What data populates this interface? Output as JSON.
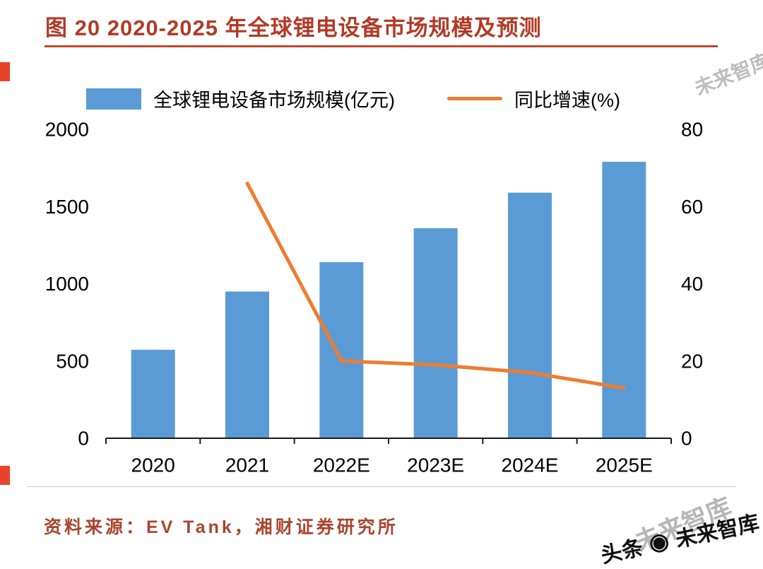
{
  "page": {
    "title": "图 20 2020-2025 年全球锂电设备市场规模及预测",
    "source_label": "资料来源：EV Tank，湘财证券研究所",
    "watermark": {
      "brand": "头条",
      "handle": "未来智库",
      "ghost": "未来智库"
    }
  },
  "chart_data": {
    "type": "bar",
    "subtype": "combo-bar-line",
    "title": "2020-2025 年全球锂电设备市场规模及预测",
    "categories": [
      "2020",
      "2021",
      "2022E",
      "2023E",
      "2024E",
      "2025E"
    ],
    "series": [
      {
        "name": "全球锂电设备市场规模(亿元)",
        "type": "bar",
        "axis": "left",
        "color": "#5B9BD5",
        "values": [
          573,
          950,
          1140,
          1360,
          1590,
          1790
        ]
      },
      {
        "name": "同比增速(%)",
        "type": "line",
        "axis": "right",
        "color": "#ED7D31",
        "values": [
          null,
          66,
          20,
          19,
          17,
          13
        ]
      }
    ],
    "left_axis": {
      "min": 0,
      "max": 2000,
      "ticks": [
        0,
        500,
        1000,
        1500,
        2000
      ]
    },
    "right_axis": {
      "min": 0,
      "max": 80,
      "ticks": [
        0,
        20,
        40,
        60,
        80
      ]
    },
    "legend_position": "top",
    "grid": false
  },
  "colors": {
    "title": "#B23A27",
    "bar": "#5B9BD5",
    "line": "#ED7D31",
    "edge_mark": "#E8432D"
  }
}
